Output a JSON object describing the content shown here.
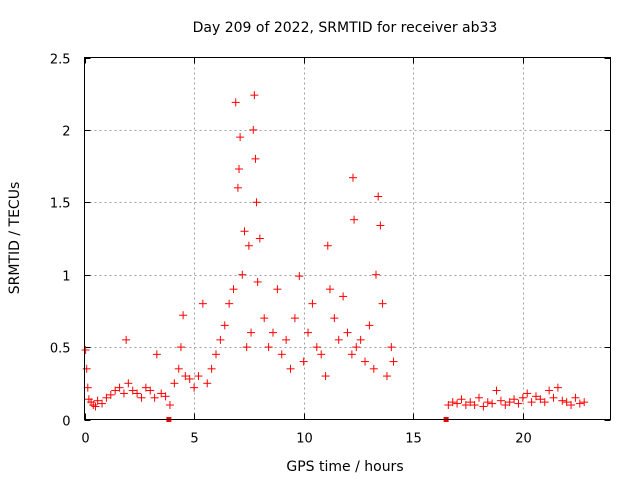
{
  "chart_data": {
    "type": "scatter",
    "title": "Day 209 of 2022, SRMTID for receiver ab33",
    "xlabel": "GPS time / hours",
    "ylabel": "SRMTID / TECUs",
    "xlim": [
      0,
      24
    ],
    "ylim": [
      0,
      2.5
    ],
    "xticks": [
      0,
      5,
      10,
      15,
      20
    ],
    "yticks": [
      0,
      0.5,
      1,
      1.5,
      2,
      2.5
    ],
    "ytick_labels": [
      "0",
      "0.5",
      "1",
      "1.5",
      "2",
      "2.5"
    ],
    "grid": true,
    "marker": "plus",
    "color": "#ff0000",
    "series": [
      {
        "name": "SRMTID",
        "x": [
          0.05,
          0.1,
          0.15,
          0.2,
          0.3,
          0.4,
          0.5,
          0.6,
          0.8,
          1.0,
          1.2,
          1.4,
          1.6,
          1.8,
          1.9,
          2.0,
          2.2,
          2.4,
          2.6,
          2.8,
          3.0,
          3.2,
          3.3,
          3.5,
          3.7,
          3.9,
          4.1,
          4.3,
          4.4,
          4.5,
          4.6,
          4.8,
          5.0,
          5.2,
          5.4,
          5.6,
          5.8,
          6.0,
          6.2,
          6.4,
          6.6,
          6.8,
          6.9,
          7.0,
          7.05,
          7.1,
          7.2,
          7.3,
          7.4,
          7.5,
          7.6,
          7.7,
          7.75,
          7.8,
          7.85,
          7.9,
          8.0,
          8.2,
          8.4,
          8.6,
          8.8,
          9.0,
          9.2,
          9.4,
          9.6,
          9.8,
          10.0,
          10.2,
          10.4,
          10.6,
          10.8,
          11.0,
          11.1,
          11.2,
          11.4,
          11.6,
          11.8,
          12.0,
          12.2,
          12.25,
          12.3,
          12.4,
          12.6,
          12.8,
          13.0,
          13.2,
          13.3,
          13.4,
          13.5,
          13.6,
          13.8,
          14.0,
          14.1,
          16.6,
          16.8,
          17.0,
          17.2,
          17.4,
          17.6,
          17.8,
          18.0,
          18.2,
          18.4,
          18.6,
          18.8,
          19.0,
          19.2,
          19.4,
          19.6,
          19.8,
          20.0,
          20.2,
          20.4,
          20.6,
          20.8,
          21.0,
          21.2,
          21.4,
          21.6,
          21.8,
          22.0,
          22.2,
          22.4,
          22.6,
          22.8
        ],
        "y": [
          0.48,
          0.35,
          0.22,
          0.14,
          0.12,
          0.1,
          0.09,
          0.13,
          0.11,
          0.15,
          0.17,
          0.2,
          0.22,
          0.18,
          0.55,
          0.25,
          0.2,
          0.18,
          0.15,
          0.22,
          0.2,
          0.15,
          0.45,
          0.18,
          0.16,
          0.1,
          0.25,
          0.35,
          0.5,
          0.72,
          0.3,
          0.28,
          0.22,
          0.3,
          0.8,
          0.25,
          0.35,
          0.45,
          0.55,
          0.65,
          0.8,
          0.9,
          2.19,
          1.6,
          1.73,
          1.95,
          1.0,
          1.3,
          0.5,
          1.2,
          0.6,
          2.0,
          2.24,
          1.8,
          1.5,
          0.95,
          1.25,
          0.7,
          0.5,
          0.6,
          0.9,
          0.45,
          0.55,
          0.35,
          0.7,
          0.99,
          0.4,
          0.6,
          0.8,
          0.5,
          0.45,
          0.3,
          1.2,
          0.9,
          0.7,
          0.55,
          0.85,
          0.6,
          0.45,
          1.67,
          1.38,
          0.5,
          0.55,
          0.4,
          0.65,
          0.35,
          1.0,
          1.54,
          1.34,
          0.8,
          0.3,
          0.5,
          0.4,
          0.1,
          0.12,
          0.11,
          0.14,
          0.1,
          0.12,
          0.1,
          0.15,
          0.09,
          0.12,
          0.11,
          0.2,
          0.13,
          0.1,
          0.12,
          0.14,
          0.11,
          0.15,
          0.18,
          0.12,
          0.16,
          0.14,
          0.12,
          0.2,
          0.15,
          0.22,
          0.13,
          0.12,
          0.1,
          0.15,
          0.11,
          0.12
        ]
      }
    ],
    "zero_markers_x": [
      3.85,
      16.5
    ]
  }
}
